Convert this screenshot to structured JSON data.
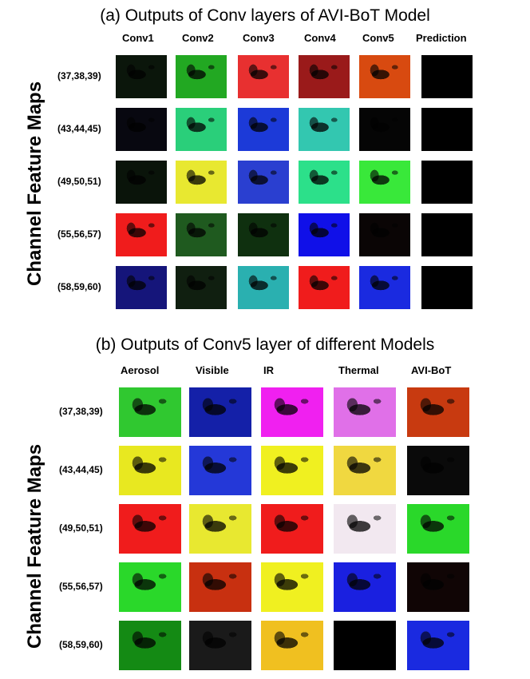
{
  "panel_a": {
    "title": "(a) Outputs of Conv layers of AVI-BoT Model",
    "columns": [
      "Conv1",
      "Conv2",
      "Conv3",
      "Conv4",
      "Conv5",
      "Prediction"
    ],
    "rows": [
      "(37,38,39)",
      "(43,44,45)",
      "(49,50,51)",
      "(55,56,57)",
      "(58,59,60)"
    ],
    "side_label": "Channel Feature Maps",
    "tile_colors": [
      [
        "#0b160b",
        "#22a822",
        "#e83030",
        "#9a1a1a",
        "#d84a10",
        "#000000"
      ],
      [
        "#080810",
        "#2acf7a",
        "#1c3ad8",
        "#33c7b0",
        "#050505",
        "#000000"
      ],
      [
        "#0a140a",
        "#e8e830",
        "#2a3fd0",
        "#2ce08a",
        "#39e83a",
        "#000000"
      ],
      [
        "#f01c1c",
        "#1f5a1f",
        "#0f300f",
        "#1010e8",
        "#0a0505",
        "#000000"
      ],
      [
        "#15157a",
        "#101f10",
        "#2ab0b0",
        "#f01c1c",
        "#1a2ae0",
        "#000000"
      ]
    ]
  },
  "panel_b": {
    "title": "(b) Outputs of Conv5 layer of different Models",
    "columns": [
      "Aerosol",
      "Visible",
      "IR",
      "Thermal",
      "AVI-BoT"
    ],
    "rows": [
      "(37,38,39)",
      "(43,44,45)",
      "(49,50,51)",
      "(55,56,57)",
      "(58,59,60)"
    ],
    "side_label": "Channel Feature Maps",
    "tile_colors": [
      [
        "#30c830",
        "#1420a8",
        "#f020f0",
        "#e070e8",
        "#c83a10"
      ],
      [
        "#e8e820",
        "#2438d8",
        "#f0f020",
        "#f0d840",
        "#0a0a0a"
      ],
      [
        "#f01c1c",
        "#e8e830",
        "#f01c1c",
        "#f2e8f0",
        "#2ad82a"
      ],
      [
        "#2ad82a",
        "#c83010",
        "#f0f020",
        "#1a20e0",
        "#100505"
      ],
      [
        "#148a14",
        "#1a1a1a",
        "#f0c020",
        "#000000",
        "#1a2ae0"
      ]
    ]
  }
}
